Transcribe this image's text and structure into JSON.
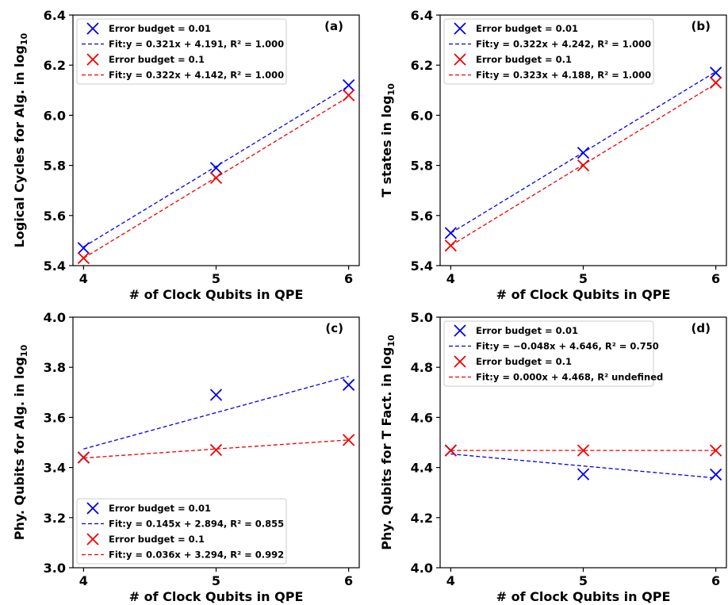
{
  "figure": {
    "xlabel": "# of Clock Qubits in QPE",
    "legend_labels": {
      "series_a": "Error budget = 0.01",
      "series_b": "Error budget = 0.1"
    },
    "colors": {
      "series_a": "#0000ee",
      "series_b": "#ee0000",
      "axes": "#000000"
    }
  },
  "chart_data": [
    {
      "type": "scatter",
      "panel_label": "(a)",
      "xlabel": "# of Clock Qubits in QPE",
      "ylabel_main": "Logical Cycles for Alg. in log",
      "ylabel_sub": "10",
      "x": [
        4,
        5,
        6
      ],
      "xticks": [
        "4",
        "5",
        "6"
      ],
      "ylim": [
        5.4,
        6.4
      ],
      "yticks": [
        "5.4",
        "5.6",
        "5.8",
        "6.0",
        "6.2",
        "6.4"
      ],
      "legend_position": "top-left",
      "series": [
        {
          "name": "Error budget = 0.01",
          "values": [
            5.47,
            5.79,
            6.12
          ],
          "fit_label": "Fit:y = 0.321x + 4.191, R² = 1.000",
          "fit_slope": 0.321,
          "fit_intercept": 4.191
        },
        {
          "name": "Error budget = 0.1",
          "values": [
            5.43,
            5.75,
            6.08
          ],
          "fit_label": "Fit:y = 0.322x + 4.142, R² = 1.000",
          "fit_slope": 0.322,
          "fit_intercept": 4.142
        }
      ]
    },
    {
      "type": "scatter",
      "panel_label": "(b)",
      "xlabel": "# of Clock Qubits in QPE",
      "ylabel_main": "T states in log",
      "ylabel_sub": "10",
      "x": [
        4,
        5,
        6
      ],
      "xticks": [
        "4",
        "5",
        "6"
      ],
      "ylim": [
        5.4,
        6.4
      ],
      "yticks": [
        "5.4",
        "5.6",
        "5.8",
        "6.0",
        "6.2",
        "6.4"
      ],
      "legend_position": "top-left",
      "series": [
        {
          "name": "Error budget = 0.01",
          "values": [
            5.53,
            5.85,
            6.17
          ],
          "fit_label": "Fit:y = 0.322x + 4.242, R² = 1.000",
          "fit_slope": 0.322,
          "fit_intercept": 4.242
        },
        {
          "name": "Error budget = 0.1",
          "values": [
            5.48,
            5.8,
            6.13
          ],
          "fit_label": "Fit:y = 0.323x + 4.188, R² = 1.000",
          "fit_slope": 0.323,
          "fit_intercept": 4.188
        }
      ]
    },
    {
      "type": "scatter",
      "panel_label": "(c)",
      "xlabel": "# of Clock Qubits in QPE",
      "ylabel_main": "Phy. Qubits for Alg. in log",
      "ylabel_sub": "10",
      "x": [
        4,
        5,
        6
      ],
      "xticks": [
        "4",
        "5",
        "6"
      ],
      "ylim": [
        3.0,
        4.0
      ],
      "yticks": [
        "3.0",
        "3.2",
        "3.4",
        "3.6",
        "3.8",
        "4.0"
      ],
      "legend_position": "bottom-left",
      "series": [
        {
          "name": "Error budget = 0.01",
          "values": [
            3.44,
            3.69,
            3.73
          ],
          "fit_label": "Fit:y = 0.145x + 2.894, R² = 0.855",
          "fit_slope": 0.145,
          "fit_intercept": 2.894
        },
        {
          "name": "Error budget = 0.1",
          "values": [
            3.44,
            3.47,
            3.51
          ],
          "fit_label": "Fit:y = 0.036x + 3.294, R² = 0.992",
          "fit_slope": 0.036,
          "fit_intercept": 3.294
        }
      ]
    },
    {
      "type": "scatter",
      "panel_label": "(d)",
      "xlabel": "# of Clock Qubits in QPE",
      "ylabel_main": "Phy. Qubits for T Fact. in log",
      "ylabel_sub": "10",
      "x": [
        4,
        5,
        6
      ],
      "xticks": [
        "4",
        "5",
        "6"
      ],
      "ylim": [
        4.0,
        5.0
      ],
      "yticks": [
        "4.0",
        "4.2",
        "4.4",
        "4.6",
        "4.8",
        "5.0"
      ],
      "legend_position": "top-left",
      "series": [
        {
          "name": "Error budget = 0.01",
          "values": [
            4.468,
            4.373,
            4.372
          ],
          "fit_label": "Fit:y = −0.048x + 4.646, R² = 0.750",
          "fit_slope": -0.048,
          "fit_intercept": 4.646
        },
        {
          "name": "Error budget = 0.1",
          "values": [
            4.468,
            4.468,
            4.468
          ],
          "fit_label": "Fit:y = 0.000x + 4.468, R² undefined",
          "fit_slope": 0.0,
          "fit_intercept": 4.468
        }
      ]
    }
  ]
}
